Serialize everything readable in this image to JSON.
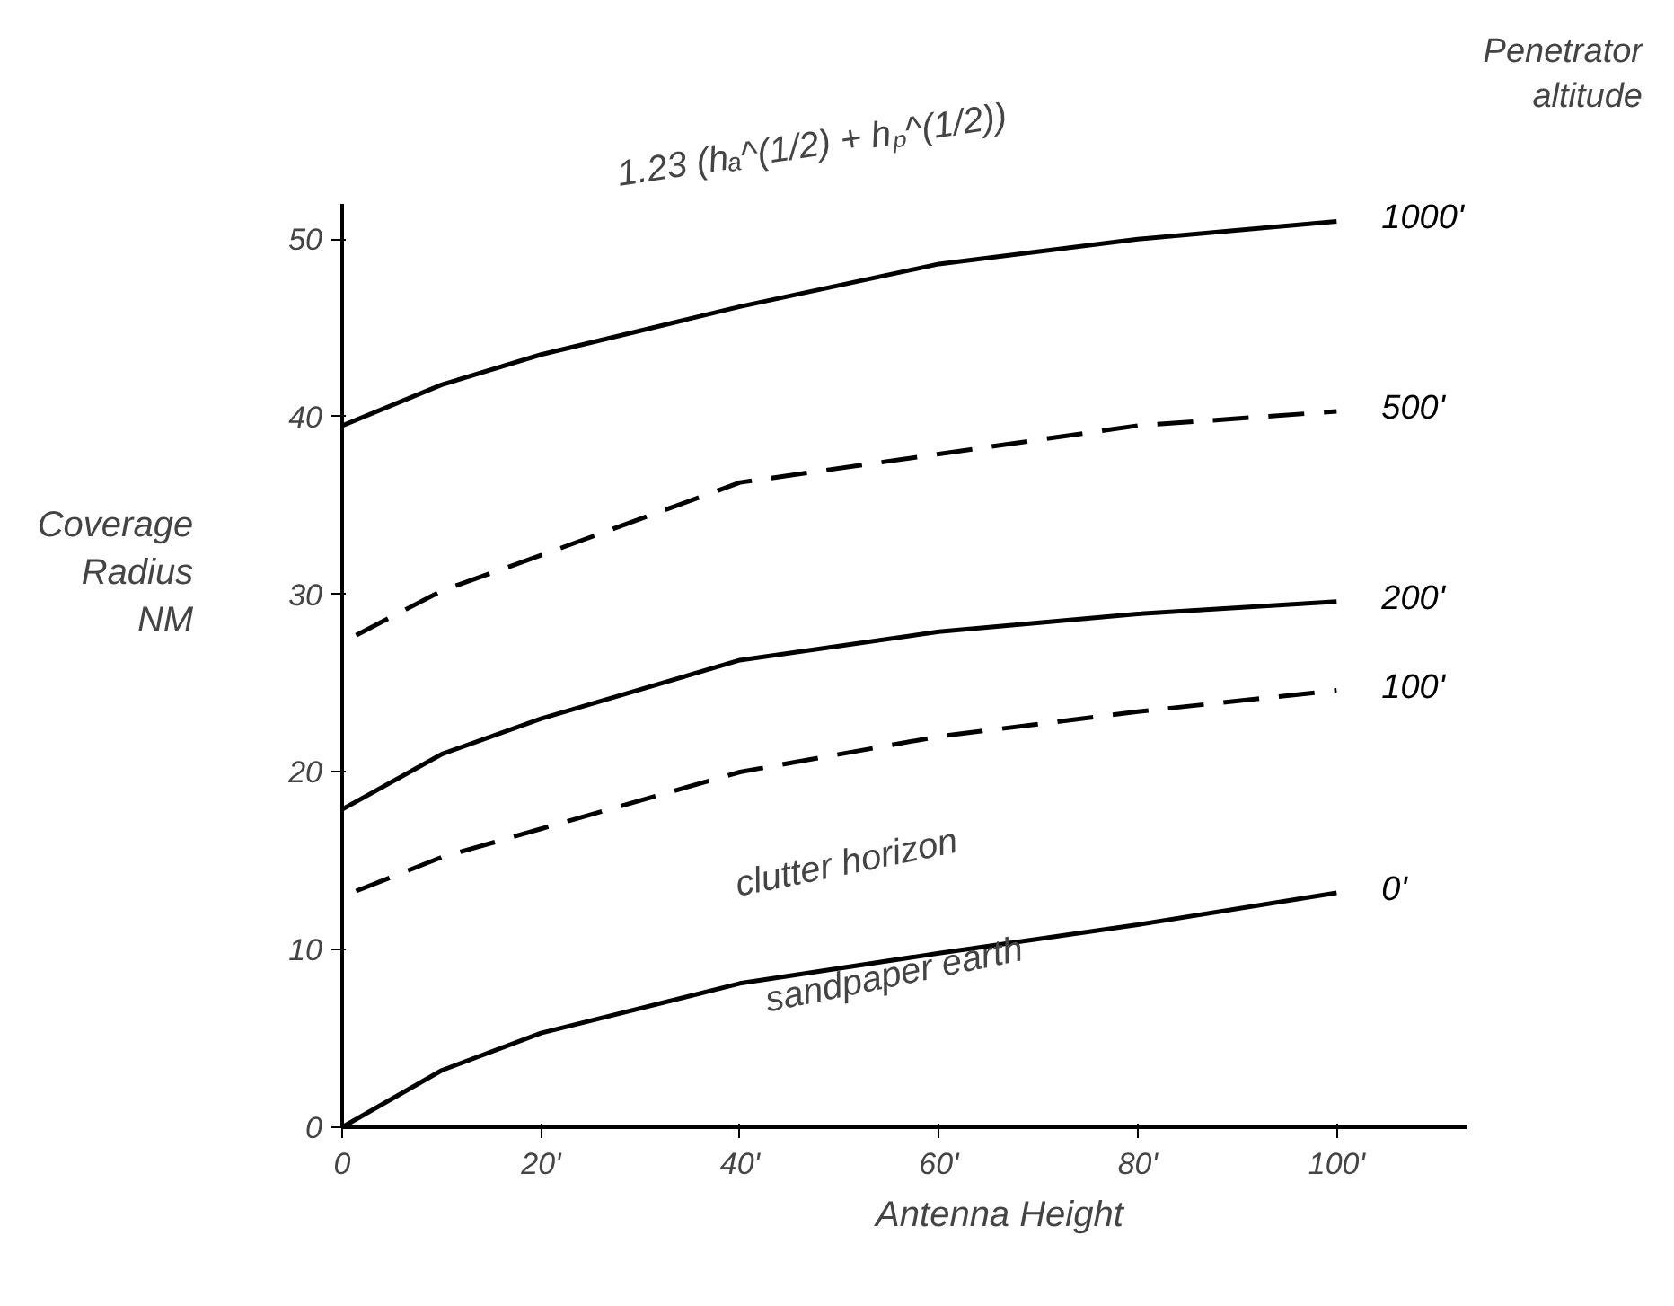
{
  "chart_data": {
    "type": "line",
    "xlabel": "Antenna Height",
    "ylabel": "Coverage\nRadius\nNM",
    "legend_title": "Penetrator\naltitude",
    "xlim": [
      0,
      113
    ],
    "ylim": [
      0,
      52
    ],
    "xticks": [
      0,
      {
        "value": 20,
        "label": "20'"
      },
      {
        "value": 40,
        "label": "40'"
      },
      {
        "value": 60,
        "label": "60'"
      },
      {
        "value": 80,
        "label": "80'"
      },
      {
        "value": 100,
        "label": "100'"
      }
    ],
    "yticks": [
      0,
      10,
      20,
      30,
      40,
      50
    ],
    "grid": false,
    "marker": "none",
    "series": [
      {
        "name": "1000'",
        "color": "#000000",
        "line_style": "solid",
        "x": [
          0,
          10,
          20,
          40,
          60,
          80,
          100
        ],
        "values": [
          39.5,
          41.8,
          43.5,
          46.2,
          48.6,
          50,
          51
        ]
      },
      {
        "name": "500'",
        "color": "#000000",
        "line_style": "dashed",
        "x": [
          1.4,
          10,
          20,
          40,
          60,
          80,
          100
        ],
        "values": [
          27.7,
          30.2,
          32.2,
          36.3,
          37.9,
          39.5,
          40.3
        ]
      },
      {
        "name": "200'",
        "color": "#000000",
        "line_style": "solid",
        "x": [
          0,
          10,
          20,
          40,
          60,
          80,
          100
        ],
        "values": [
          17.9,
          21,
          23,
          26.3,
          27.9,
          28.9,
          29.6
        ]
      },
      {
        "name": "100'",
        "color": "#000000",
        "line_style": "dashed",
        "x": [
          1.4,
          10,
          20,
          40,
          60,
          80,
          100
        ],
        "values": [
          13.3,
          15.2,
          16.8,
          20,
          22,
          23.4,
          24.6
        ]
      },
      {
        "name": "0'",
        "color": "#000000",
        "line_style": "solid",
        "x": [
          0,
          10,
          20,
          40,
          60,
          80,
          100
        ],
        "values": [
          0,
          3.2,
          5.3,
          8.1,
          9.8,
          11.4,
          13.2
        ]
      }
    ],
    "annotations": [
      "1.23 (hₐ^(1/2) + hₚ^(1/2))",
      "clutter horizon",
      "sandpaper earth"
    ]
  }
}
